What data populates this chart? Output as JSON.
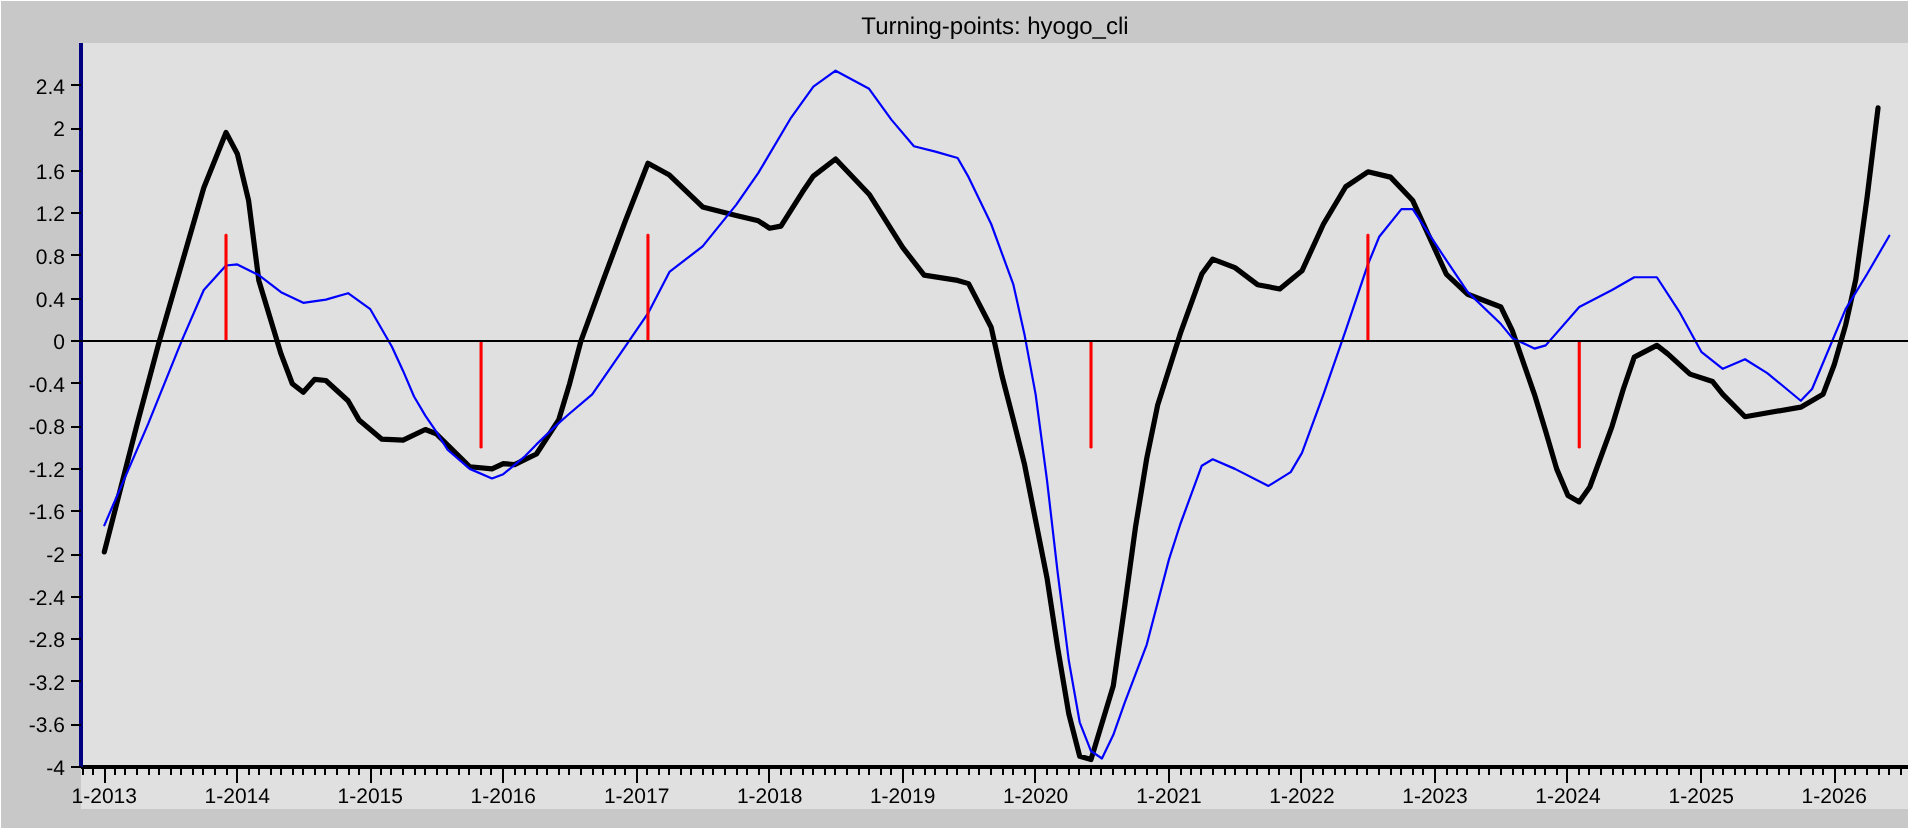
{
  "chart_data": {
    "type": "line",
    "title": "Turning-points: hyogo_cli",
    "xlim": [
      "2012-10-29",
      "2026-07-25"
    ],
    "ylim": [
      -4,
      2.8
    ],
    "yticks": [
      -4,
      -3.6,
      -3.2,
      -2.8,
      -2.4,
      -2,
      -1.6,
      -1.2,
      -0.8,
      -0.4,
      0,
      0.4,
      0.8,
      1.2,
      1.6,
      2,
      2.4
    ],
    "xticks": [
      {
        "value": "2012-11",
        "label": null
      },
      {
        "value": "2012-12",
        "label": null
      },
      {
        "value": "2013-01",
        "label": "1-2013"
      },
      {
        "value": "2013-02",
        "label": null
      },
      {
        "value": "2013-03",
        "label": null
      },
      {
        "value": "2013-04",
        "label": null
      },
      {
        "value": "2013-05",
        "label": null
      },
      {
        "value": "2013-06",
        "label": null
      },
      {
        "value": "2013-07",
        "label": null
      },
      {
        "value": "2013-08",
        "label": null
      },
      {
        "value": "2013-09",
        "label": null
      },
      {
        "value": "2013-10",
        "label": null
      },
      {
        "value": "2013-11",
        "label": null
      },
      {
        "value": "2013-12",
        "label": null
      },
      {
        "value": "2014-01",
        "label": "1-2014"
      },
      {
        "value": "2014-02",
        "label": null
      },
      {
        "value": "2014-03",
        "label": null
      },
      {
        "value": "2014-04",
        "label": null
      },
      {
        "value": "2014-05",
        "label": null
      },
      {
        "value": "2014-06",
        "label": null
      },
      {
        "value": "2014-07",
        "label": null
      },
      {
        "value": "2014-08",
        "label": null
      },
      {
        "value": "2014-09",
        "label": null
      },
      {
        "value": "2014-10",
        "label": null
      },
      {
        "value": "2014-11",
        "label": null
      },
      {
        "value": "2014-12",
        "label": null
      },
      {
        "value": "2015-01",
        "label": "1-2015"
      },
      {
        "value": "2015-02",
        "label": null
      },
      {
        "value": "2015-03",
        "label": null
      },
      {
        "value": "2015-04",
        "label": null
      },
      {
        "value": "2015-05",
        "label": null
      },
      {
        "value": "2015-06",
        "label": null
      },
      {
        "value": "2015-07",
        "label": null
      },
      {
        "value": "2015-08",
        "label": null
      },
      {
        "value": "2015-09",
        "label": null
      },
      {
        "value": "2015-10",
        "label": null
      },
      {
        "value": "2015-11",
        "label": null
      },
      {
        "value": "2015-12",
        "label": null
      },
      {
        "value": "2016-01",
        "label": "1-2016"
      },
      {
        "value": "2016-02",
        "label": null
      },
      {
        "value": "2016-03",
        "label": null
      },
      {
        "value": "2016-04",
        "label": null
      },
      {
        "value": "2016-05",
        "label": null
      },
      {
        "value": "2016-06",
        "label": null
      },
      {
        "value": "2016-07",
        "label": null
      },
      {
        "value": "2016-08",
        "label": null
      },
      {
        "value": "2016-09",
        "label": null
      },
      {
        "value": "2016-10",
        "label": null
      },
      {
        "value": "2016-11",
        "label": null
      },
      {
        "value": "2016-12",
        "label": null
      },
      {
        "value": "2017-01",
        "label": "1-2017"
      },
      {
        "value": "2017-02",
        "label": null
      },
      {
        "value": "2017-03",
        "label": null
      },
      {
        "value": "2017-04",
        "label": null
      },
      {
        "value": "2017-05",
        "label": null
      },
      {
        "value": "2017-06",
        "label": null
      },
      {
        "value": "2017-07",
        "label": null
      },
      {
        "value": "2017-08",
        "label": null
      },
      {
        "value": "2017-09",
        "label": null
      },
      {
        "value": "2017-10",
        "label": null
      },
      {
        "value": "2017-11",
        "label": null
      },
      {
        "value": "2017-12",
        "label": null
      },
      {
        "value": "2018-01",
        "label": "1-2018"
      },
      {
        "value": "2018-02",
        "label": null
      },
      {
        "value": "2018-03",
        "label": null
      },
      {
        "value": "2018-04",
        "label": null
      },
      {
        "value": "2018-05",
        "label": null
      },
      {
        "value": "2018-06",
        "label": null
      },
      {
        "value": "2018-07",
        "label": null
      },
      {
        "value": "2018-08",
        "label": null
      },
      {
        "value": "2018-09",
        "label": null
      },
      {
        "value": "2018-10",
        "label": null
      },
      {
        "value": "2018-11",
        "label": null
      },
      {
        "value": "2018-12",
        "label": null
      },
      {
        "value": "2019-01",
        "label": "1-2019"
      },
      {
        "value": "2019-02",
        "label": null
      },
      {
        "value": "2019-03",
        "label": null
      },
      {
        "value": "2019-04",
        "label": null
      },
      {
        "value": "2019-05",
        "label": null
      },
      {
        "value": "2019-06",
        "label": null
      },
      {
        "value": "2019-07",
        "label": null
      },
      {
        "value": "2019-08",
        "label": null
      },
      {
        "value": "2019-09",
        "label": null
      },
      {
        "value": "2019-10",
        "label": null
      },
      {
        "value": "2019-11",
        "label": null
      },
      {
        "value": "2019-12",
        "label": null
      },
      {
        "value": "2020-01",
        "label": "1-2020"
      },
      {
        "value": "2020-02",
        "label": null
      },
      {
        "value": "2020-03",
        "label": null
      },
      {
        "value": "2020-04",
        "label": null
      },
      {
        "value": "2020-05",
        "label": null
      },
      {
        "value": "2020-06",
        "label": null
      },
      {
        "value": "2020-07",
        "label": null
      },
      {
        "value": "2020-08",
        "label": null
      },
      {
        "value": "2020-09",
        "label": null
      },
      {
        "value": "2020-10",
        "label": null
      },
      {
        "value": "2020-11",
        "label": null
      },
      {
        "value": "2020-12",
        "label": null
      },
      {
        "value": "2021-01",
        "label": "1-2021"
      },
      {
        "value": "2021-02",
        "label": null
      },
      {
        "value": "2021-03",
        "label": null
      },
      {
        "value": "2021-04",
        "label": null
      },
      {
        "value": "2021-05",
        "label": null
      },
      {
        "value": "2021-06",
        "label": null
      },
      {
        "value": "2021-07",
        "label": null
      },
      {
        "value": "2021-08",
        "label": null
      },
      {
        "value": "2021-09",
        "label": null
      },
      {
        "value": "2021-10",
        "label": null
      },
      {
        "value": "2021-11",
        "label": null
      },
      {
        "value": "2021-12",
        "label": null
      },
      {
        "value": "2022-01",
        "label": "1-2022"
      },
      {
        "value": "2022-02",
        "label": null
      },
      {
        "value": "2022-03",
        "label": null
      },
      {
        "value": "2022-04",
        "label": null
      },
      {
        "value": "2022-05",
        "label": null
      },
      {
        "value": "2022-06",
        "label": null
      },
      {
        "value": "2022-07",
        "label": null
      },
      {
        "value": "2022-08",
        "label": null
      },
      {
        "value": "2022-09",
        "label": null
      },
      {
        "value": "2022-10",
        "label": null
      },
      {
        "value": "2022-11",
        "label": null
      },
      {
        "value": "2022-12",
        "label": null
      },
      {
        "value": "2023-01",
        "label": "1-2023"
      },
      {
        "value": "2023-02",
        "label": null
      },
      {
        "value": "2023-03",
        "label": null
      },
      {
        "value": "2023-04",
        "label": null
      },
      {
        "value": "2023-05",
        "label": null
      },
      {
        "value": "2023-06",
        "label": null
      },
      {
        "value": "2023-07",
        "label": null
      },
      {
        "value": "2023-08",
        "label": null
      },
      {
        "value": "2023-09",
        "label": null
      },
      {
        "value": "2023-10",
        "label": null
      },
      {
        "value": "2023-11",
        "label": null
      },
      {
        "value": "2023-12",
        "label": null
      },
      {
        "value": "2024-01",
        "label": "1-2024"
      },
      {
        "value": "2024-02",
        "label": null
      },
      {
        "value": "2024-03",
        "label": null
      },
      {
        "value": "2024-04",
        "label": null
      },
      {
        "value": "2024-05",
        "label": null
      },
      {
        "value": "2024-06",
        "label": null
      },
      {
        "value": "2024-07",
        "label": null
      },
      {
        "value": "2024-08",
        "label": null
      },
      {
        "value": "2024-09",
        "label": null
      },
      {
        "value": "2024-10",
        "label": null
      },
      {
        "value": "2024-11",
        "label": null
      },
      {
        "value": "2024-12",
        "label": null
      },
      {
        "value": "2025-01",
        "label": "1-2025"
      },
      {
        "value": "2025-02",
        "label": null
      },
      {
        "value": "2025-03",
        "label": null
      },
      {
        "value": "2025-04",
        "label": null
      },
      {
        "value": "2025-05",
        "label": null
      },
      {
        "value": "2025-06",
        "label": null
      },
      {
        "value": "2025-07",
        "label": null
      },
      {
        "value": "2025-08",
        "label": null
      },
      {
        "value": "2025-09",
        "label": null
      },
      {
        "value": "2025-10",
        "label": null
      },
      {
        "value": "2025-11",
        "label": null
      },
      {
        "value": "2025-12",
        "label": null
      },
      {
        "value": "2026-01",
        "label": "1-2026"
      },
      {
        "value": "2026-02",
        "label": null
      },
      {
        "value": "2026-03",
        "label": null
      },
      {
        "value": "2026-04",
        "label": null
      },
      {
        "value": "2026-05",
        "label": null
      },
      {
        "value": "2026-06",
        "label": null
      },
      {
        "value": "2026-07",
        "label": null
      }
    ],
    "grid": false,
    "ref_lines": [
      {
        "axis": "y",
        "value": 0,
        "color": "#000000"
      }
    ],
    "series": [
      {
        "color": "#000000",
        "x": [
          "2013-01",
          "2013-04",
          "2013-06",
          "2013-10",
          "2013-12",
          "2014-01",
          "2014-02",
          "2014-03",
          "2014-05",
          "2014-06",
          "2014-07",
          "2014-08",
          "2014-09",
          "2014-11",
          "2014-12",
          "2015-02",
          "2015-04",
          "2015-06",
          "2015-07",
          "2015-10",
          "2015-12",
          "2016-01",
          "2016-02",
          "2016-04",
          "2016-06",
          "2016-07",
          "2016-08",
          "2016-10",
          "2016-12",
          "2017-02",
          "2017-04",
          "2017-07",
          "2017-10",
          "2017-12",
          "2018-01",
          "2018-02",
          "2018-04",
          "2018-05",
          "2018-07",
          "2018-10",
          "2019-01",
          "2019-03",
          "2019-06",
          "2019-07",
          "2019-09",
          "2019-10",
          "2019-11",
          "2019-12",
          "2020-02",
          "2020-03",
          "2020-04",
          "2020-05",
          "2020-06",
          "2020-08",
          "2020-09",
          "2020-10",
          "2020-11",
          "2020-12",
          "2021-02",
          "2021-04",
          "2021-05",
          "2021-07",
          "2021-09",
          "2021-11",
          "2022-01",
          "2022-03",
          "2022-05",
          "2022-07",
          "2022-09",
          "2022-11",
          "2023-02",
          "2023-04",
          "2023-07",
          "2023-08",
          "2023-10",
          "2023-11",
          "2023-12",
          "2024-01",
          "2024-02",
          "2024-03",
          "2024-05",
          "2024-06",
          "2024-07",
          "2024-09",
          "2024-10",
          "2024-12",
          "2025-02",
          "2025-03",
          "2025-05",
          "2025-10",
          "2025-12",
          "2026-01",
          "2026-02",
          "2026-03",
          "2026-04",
          "2026-05"
        ],
        "values": [
          -1.98,
          -0.78,
          0.0,
          1.44,
          1.96,
          1.76,
          1.32,
          0.57,
          -0.12,
          -0.4,
          -0.48,
          -0.36,
          -0.37,
          -0.56,
          -0.74,
          -0.92,
          -0.93,
          -0.83,
          -0.87,
          -1.18,
          -1.2,
          -1.15,
          -1.16,
          -1.06,
          -0.74,
          -0.4,
          0.0,
          0.57,
          1.13,
          1.67,
          1.56,
          1.26,
          1.18,
          1.13,
          1.06,
          1.08,
          1.4,
          1.55,
          1.71,
          1.38,
          0.88,
          0.62,
          0.57,
          0.54,
          0.13,
          -0.33,
          -0.74,
          -1.15,
          -2.22,
          -2.87,
          -3.5,
          -3.9,
          -3.93,
          -3.24,
          -2.5,
          -1.75,
          -1.1,
          -0.6,
          0.07,
          0.63,
          0.77,
          0.69,
          0.53,
          0.49,
          0.66,
          1.1,
          1.45,
          1.59,
          1.54,
          1.32,
          0.63,
          0.44,
          0.32,
          0.1,
          -0.5,
          -0.85,
          -1.2,
          -1.45,
          -1.51,
          -1.37,
          -0.8,
          -0.45,
          -0.15,
          -0.04,
          -0.12,
          -0.31,
          -0.38,
          -0.5,
          -0.71,
          -0.62,
          -0.5,
          -0.22,
          0.15,
          0.58,
          1.35,
          2.19
        ]
      },
      {
        "color": "#0000ff",
        "x": [
          "2013-01",
          "2013-05",
          "2013-08",
          "2013-10",
          "2013-12",
          "2014-01",
          "2014-03",
          "2014-05",
          "2014-07",
          "2014-09",
          "2014-11",
          "2015-01",
          "2015-03",
          "2015-04",
          "2015-05",
          "2015-06",
          "2015-07",
          "2015-08",
          "2015-10",
          "2015-12",
          "2016-01",
          "2016-03",
          "2016-04",
          "2016-06",
          "2016-07",
          "2016-09",
          "2016-12",
          "2017-02",
          "2017-04",
          "2017-07",
          "2017-10",
          "2017-12",
          "2018-03",
          "2018-05",
          "2018-07",
          "2018-10",
          "2018-12",
          "2019-02",
          "2019-04",
          "2019-06",
          "2019-07",
          "2019-09",
          "2019-11",
          "2019-12",
          "2020-01",
          "2020-02",
          "2020-03",
          "2020-04",
          "2020-05",
          "2020-06",
          "2020-07",
          "2020-08",
          "2020-09",
          "2020-11",
          "2021-01",
          "2021-02",
          "2021-04",
          "2021-05",
          "2021-07",
          "2021-10",
          "2021-12",
          "2022-01",
          "2022-03",
          "2022-05",
          "2022-07",
          "2022-08",
          "2022-10",
          "2022-11",
          "2023-02",
          "2023-04",
          "2023-07",
          "2023-08",
          "2023-10",
          "2023-11",
          "2024-02",
          "2024-05",
          "2024-07",
          "2024-09",
          "2024-11",
          "2025-01",
          "2025-03",
          "2025-05",
          "2025-07",
          "2025-10",
          "2025-11",
          "2026-02",
          "2026-04",
          "2026-06"
        ],
        "values": [
          -1.73,
          -0.78,
          0.0,
          0.48,
          0.71,
          0.72,
          0.62,
          0.46,
          0.36,
          0.39,
          0.45,
          0.3,
          -0.05,
          -0.28,
          -0.52,
          -0.7,
          -0.85,
          -1.02,
          -1.2,
          -1.29,
          -1.25,
          -1.08,
          -0.97,
          -0.77,
          -0.68,
          -0.5,
          -0.05,
          0.26,
          0.65,
          0.89,
          1.28,
          1.58,
          2.1,
          2.39,
          2.54,
          2.37,
          2.08,
          1.83,
          1.78,
          1.72,
          1.54,
          1.1,
          0.53,
          0.07,
          -0.5,
          -1.3,
          -2.16,
          -3.0,
          -3.58,
          -3.85,
          -3.92,
          -3.7,
          -3.4,
          -2.85,
          -2.05,
          -1.72,
          -1.17,
          -1.11,
          -1.2,
          -1.36,
          -1.23,
          -1.05,
          -0.5,
          0.1,
          0.72,
          0.98,
          1.24,
          1.24,
          0.76,
          0.46,
          0.16,
          0.03,
          -0.07,
          -0.04,
          0.32,
          0.48,
          0.6,
          0.6,
          0.28,
          -0.1,
          -0.26,
          -0.17,
          -0.3,
          -0.56,
          -0.45,
          0.3,
          0.63,
          0.99
        ]
      },
      {
        "type": "bar",
        "color": "#ff0000",
        "x": [
          "2013-12",
          "2015-11",
          "2017-02",
          "2020-06",
          "2022-07",
          "2024-02"
        ],
        "values": [
          1,
          -1,
          1,
          -1,
          1,
          -1
        ]
      }
    ]
  }
}
